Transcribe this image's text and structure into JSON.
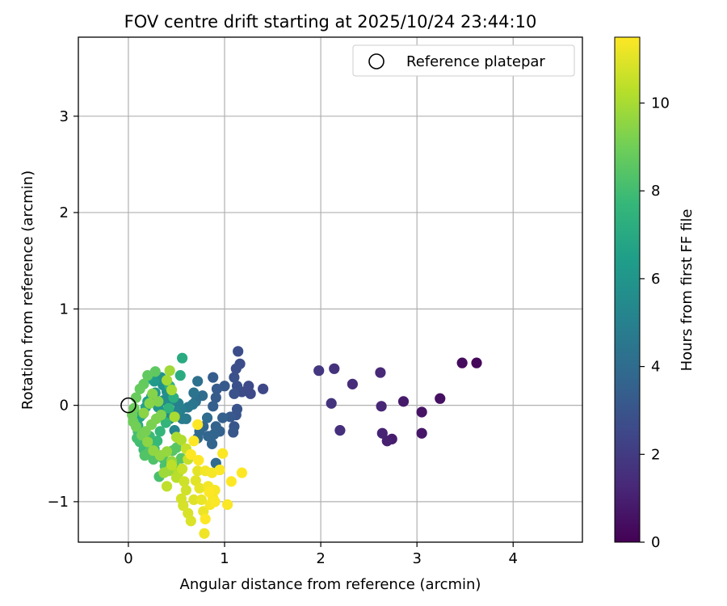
{
  "chart_data": {
    "type": "scatter",
    "title": "FOV centre drift starting at 2025/10/24 23:44:10",
    "xlabel": "Angular distance from reference (arcmin)",
    "ylabel": "Rotation from reference (arcmin)",
    "xlim": [
      -0.52,
      4.72
    ],
    "ylim": [
      -1.42,
      3.82
    ],
    "xticks": [
      0,
      1,
      2,
      3,
      4
    ],
    "xtick_labels": [
      "0",
      "1",
      "2",
      "3",
      "4"
    ],
    "yticks": [
      -1,
      0,
      1,
      2,
      3
    ],
    "ytick_labels": [
      "−1",
      "0",
      "1",
      "2",
      "3"
    ],
    "grid": true,
    "legend": {
      "position": "top-right",
      "label": "Reference platepar"
    },
    "reference_point": {
      "x": 0,
      "y": 0
    },
    "colorbar": {
      "label": "Hours from first FF file",
      "colormap": "viridis",
      "range": [
        0,
        11.5
      ],
      "ticks": [
        0,
        2,
        4,
        6,
        8,
        10
      ],
      "tick_labels": [
        "0",
        "2",
        "4",
        "6",
        "8",
        "10"
      ]
    },
    "colors": {
      "viridis": [
        "#440154",
        "#482878",
        "#3e4989",
        "#31688e",
        "#26828e",
        "#1f9e89",
        "#35b779",
        "#6ece58",
        "#b5de2b",
        "#fde725"
      ]
    },
    "points": [
      [
        3.62,
        0.44,
        0.2
      ],
      [
        3.47,
        0.44,
        0.35
      ],
      [
        3.24,
        0.07,
        0.5
      ],
      [
        3.05,
        -0.07,
        0.6
      ],
      [
        3.05,
        -0.29,
        0.7
      ],
      [
        2.86,
        0.04,
        0.8
      ],
      [
        2.74,
        -0.35,
        0.9
      ],
      [
        2.69,
        -0.37,
        1.0
      ],
      [
        2.64,
        -0.29,
        1.1
      ],
      [
        2.63,
        -0.01,
        1.2
      ],
      [
        2.62,
        0.34,
        1.3
      ],
      [
        2.33,
        0.22,
        1.45
      ],
      [
        2.2,
        -0.26,
        1.55
      ],
      [
        2.14,
        0.38,
        1.65
      ],
      [
        2.11,
        0.02,
        1.75
      ],
      [
        1.98,
        0.36,
        1.85
      ],
      [
        1.4,
        0.17,
        2.5
      ],
      [
        1.27,
        0.12,
        2.55
      ],
      [
        1.25,
        0.2,
        2.6
      ],
      [
        1.18,
        0.14,
        2.65
      ],
      [
        1.16,
        0.43,
        2.7
      ],
      [
        1.14,
        0.56,
        2.75
      ],
      [
        1.12,
        0.38,
        2.8
      ],
      [
        1.13,
        0.2,
        2.85
      ],
      [
        1.1,
        0.29,
        2.9
      ],
      [
        1.1,
        0.12,
        2.95
      ],
      [
        1.13,
        -0.04,
        3.0
      ],
      [
        1.12,
        -0.1,
        3.05
      ],
      [
        1.1,
        -0.22,
        3.1
      ],
      [
        1.09,
        -0.28,
        3.15
      ],
      [
        1.06,
        -0.12,
        3.2
      ],
      [
        1.0,
        0.2,
        3.25
      ],
      [
        0.92,
        0.17,
        3.3
      ],
      [
        0.91,
        0.08,
        3.35
      ],
      [
        0.88,
        0.29,
        3.4
      ],
      [
        0.88,
        -0.01,
        3.45
      ],
      [
        0.98,
        -0.13,
        3.5
      ],
      [
        0.95,
        -0.27,
        3.55
      ],
      [
        0.91,
        -0.22,
        3.6
      ],
      [
        0.89,
        -0.3,
        3.65
      ],
      [
        0.87,
        -0.4,
        3.7
      ],
      [
        0.83,
        -0.32,
        3.75
      ],
      [
        0.78,
        -0.22,
        3.8
      ],
      [
        0.74,
        -0.27,
        3.85
      ],
      [
        0.72,
        -0.34,
        3.9
      ],
      [
        0.91,
        -0.6,
        3.95
      ],
      [
        0.82,
        -0.13,
        4.05
      ],
      [
        0.77,
        0.1,
        4.1
      ],
      [
        0.7,
        0.04,
        4.2
      ],
      [
        0.72,
        0.25,
        4.3
      ],
      [
        0.68,
        0.13,
        4.4
      ],
      [
        0.67,
        0.01,
        4.5
      ],
      [
        0.62,
        -0.02,
        4.6
      ],
      [
        0.6,
        -0.14,
        4.7
      ],
      [
        0.56,
        -0.14,
        4.8
      ],
      [
        0.55,
        -0.04,
        4.9
      ],
      [
        0.52,
        0.02,
        5.0
      ],
      [
        0.5,
        -0.07,
        5.1
      ],
      [
        0.48,
        -0.26,
        5.2
      ],
      [
        0.45,
        0.06,
        5.3
      ],
      [
        0.43,
        -0.14,
        5.4
      ],
      [
        0.38,
        -0.08,
        5.5
      ],
      [
        0.36,
        0.05,
        5.6
      ],
      [
        0.4,
        0.14,
        5.7
      ],
      [
        0.36,
        0.21,
        5.8
      ],
      [
        0.34,
        0.29,
        5.9
      ],
      [
        0.31,
        -0.02,
        6.0
      ],
      [
        0.28,
        0.13,
        6.1
      ],
      [
        0.27,
        0.25,
        6.2
      ],
      [
        0.24,
        0.09,
        6.3
      ],
      [
        0.21,
        0.28,
        6.4
      ],
      [
        0.2,
        0.04,
        6.5
      ],
      [
        0.18,
        -0.02,
        6.6
      ],
      [
        0.15,
        -0.09,
        6.7
      ],
      [
        0.12,
        -0.12,
        6.8
      ],
      [
        0.1,
        -0.21,
        6.9
      ],
      [
        0.56,
        0.49,
        7.0
      ],
      [
        0.54,
        0.31,
        7.1
      ],
      [
        0.47,
        0.08,
        7.2
      ],
      [
        0.43,
        0.2,
        7.3
      ],
      [
        0.42,
        -0.03,
        7.4
      ],
      [
        0.39,
        -0.18,
        7.5
      ],
      [
        0.33,
        -0.27,
        7.6
      ],
      [
        0.3,
        -0.37,
        7.7
      ],
      [
        0.27,
        -0.45,
        7.75
      ],
      [
        0.22,
        -0.32,
        7.8
      ],
      [
        0.19,
        -0.4,
        7.85
      ],
      [
        0.16,
        -0.46,
        7.9
      ],
      [
        0.12,
        -0.38,
        7.95
      ],
      [
        0.1,
        -0.27,
        8.0
      ],
      [
        0.09,
        -0.34,
        8.05
      ],
      [
        0.32,
        -0.74,
        8.1
      ],
      [
        0.38,
        -0.63,
        8.15
      ],
      [
        0.36,
        -0.55,
        8.2
      ],
      [
        0.26,
        -0.56,
        8.25
      ],
      [
        0.22,
        -0.48,
        8.3
      ],
      [
        0.17,
        -0.52,
        8.35
      ],
      [
        0.46,
        -0.47,
        8.4
      ],
      [
        0.5,
        -0.44,
        8.45
      ],
      [
        0.55,
        -0.55,
        8.5
      ],
      [
        0.48,
        -0.62,
        8.55
      ],
      [
        0.28,
        0.35,
        8.6
      ],
      [
        0.2,
        0.31,
        8.65
      ],
      [
        0.16,
        0.22,
        8.7
      ],
      [
        0.12,
        0.17,
        8.75
      ],
      [
        0.08,
        0.08,
        8.8
      ],
      [
        0.06,
        -0.03,
        8.85
      ],
      [
        0.04,
        -0.1,
        8.9
      ],
      [
        0.05,
        -0.17,
        8.95
      ],
      [
        0.08,
        -0.22,
        9.0
      ],
      [
        0.14,
        -0.31,
        9.05
      ],
      [
        0.18,
        -0.27,
        9.1
      ],
      [
        0.24,
        -0.2,
        9.15
      ],
      [
        0.29,
        -0.14,
        9.2
      ],
      [
        0.34,
        -0.1,
        9.25
      ],
      [
        0.31,
        0.04,
        9.3
      ],
      [
        0.25,
        0.12,
        9.35
      ],
      [
        0.22,
        0.02,
        9.4
      ],
      [
        0.16,
        -0.08,
        9.45
      ],
      [
        0.2,
        -0.38,
        9.5
      ],
      [
        0.26,
        -0.47,
        9.55
      ],
      [
        0.33,
        -0.52,
        9.6
      ],
      [
        0.4,
        -0.48,
        9.65
      ],
      [
        0.45,
        -0.58,
        9.7
      ],
      [
        0.42,
        -0.68,
        9.75
      ],
      [
        0.37,
        -0.7,
        9.8
      ],
      [
        0.43,
        0.36,
        9.85
      ],
      [
        0.4,
        0.26,
        9.9
      ],
      [
        0.45,
        0.16,
        9.95
      ],
      [
        0.48,
        -0.12,
        10.0
      ],
      [
        0.5,
        -0.33,
        10.05
      ],
      [
        0.55,
        -0.36,
        10.1
      ],
      [
        0.52,
        -0.7,
        10.2
      ],
      [
        0.5,
        -0.75,
        10.3
      ],
      [
        0.45,
        -0.62,
        10.35
      ],
      [
        0.4,
        -0.84,
        10.4
      ],
      [
        0.6,
        -0.45,
        10.5
      ],
      [
        0.62,
        -0.56,
        10.55
      ],
      [
        0.56,
        -0.66,
        10.6
      ],
      [
        0.58,
        -0.79,
        10.65
      ],
      [
        0.6,
        -0.88,
        10.7
      ],
      [
        0.55,
        -0.97,
        10.75
      ],
      [
        0.57,
        -1.04,
        10.8
      ],
      [
        0.62,
        -1.12,
        10.85
      ],
      [
        0.65,
        -1.2,
        10.9
      ],
      [
        0.68,
        -0.98,
        10.95
      ],
      [
        0.7,
        -0.78,
        11.0
      ],
      [
        0.72,
        -0.68,
        11.05
      ],
      [
        0.74,
        -0.86,
        11.1
      ],
      [
        0.76,
        -0.98,
        11.15
      ],
      [
        0.78,
        -1.1,
        11.2
      ],
      [
        0.79,
        -1.33,
        11.25
      ],
      [
        0.8,
        -0.68,
        11.3
      ],
      [
        0.83,
        -0.84,
        11.3
      ],
      [
        0.85,
        -1.03,
        11.35
      ],
      [
        0.87,
        -0.7,
        11.35
      ],
      [
        0.9,
        -0.88,
        11.4
      ],
      [
        0.88,
        -0.96,
        11.4
      ],
      [
        0.9,
        -1.0,
        11.45
      ],
      [
        0.95,
        -0.67,
        11.45
      ],
      [
        0.98,
        -0.5,
        11.45
      ],
      [
        1.03,
        -1.03,
        11.45
      ],
      [
        1.07,
        -0.79,
        11.5
      ],
      [
        1.18,
        -0.7,
        11.5
      ],
      [
        0.72,
        -0.2,
        11.5
      ],
      [
        0.68,
        -0.37,
        11.5
      ],
      [
        0.65,
        -0.51,
        11.5
      ],
      [
        0.8,
        -1.18,
        11.5
      ],
      [
        0.84,
        -0.9,
        11.5
      ],
      [
        0.73,
        -0.57,
        11.5
      ]
    ]
  }
}
